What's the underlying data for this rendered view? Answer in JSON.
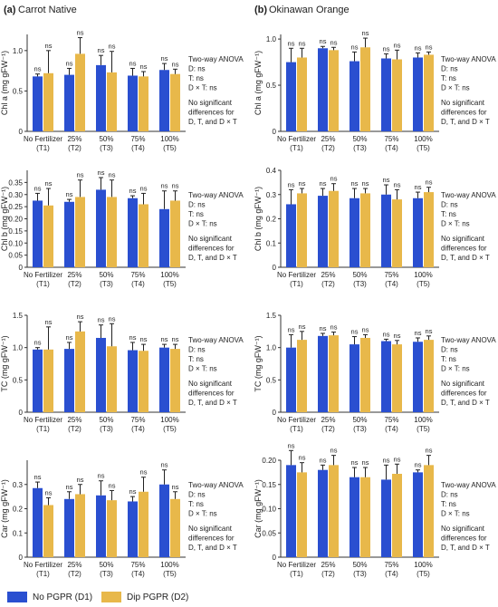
{
  "colors": {
    "D1": "#2a4fd0",
    "D2": "#e8b84a",
    "axis": "#333333",
    "text": "#222222"
  },
  "panels": [
    {
      "letter": "(a)",
      "title": "Carrot Native"
    },
    {
      "letter": "(b)",
      "title": "Okinawan Orange"
    }
  ],
  "legend": [
    {
      "key": "D1",
      "label": "No PGPR (D1)"
    },
    {
      "key": "D2",
      "label": "Dip PGPR (D2)"
    }
  ],
  "chart_data": [
    {
      "panel": "a",
      "type": "bar",
      "ylabel": "Chl a (mg gFW⁻¹)",
      "ylim": [
        0,
        1.2
      ],
      "yticks": [
        "0",
        "0.5",
        "1.0"
      ],
      "ytick_values": [
        0,
        0.5,
        1.0
      ],
      "categories": [
        [
          "No Fertilizer",
          "(T1)"
        ],
        [
          "25%",
          "(T2)"
        ],
        [
          "50%",
          "(T3)"
        ],
        [
          "75%",
          "(T4)"
        ],
        [
          "100%",
          "(T5)"
        ]
      ],
      "series": [
        {
          "name": "No PGPR (D1)",
          "values": [
            0.68,
            0.7,
            0.82,
            0.69,
            0.76
          ],
          "errors": [
            0.03,
            0.08,
            0.12,
            0.09,
            0.08
          ],
          "labels": [
            "ns",
            "ns",
            "ns",
            "ns",
            "ns"
          ]
        },
        {
          "name": "Dip PGPR (D2)",
          "values": [
            0.72,
            0.96,
            0.73,
            0.68,
            0.71
          ],
          "errors": [
            0.28,
            0.2,
            0.26,
            0.06,
            0.06
          ],
          "labels": [
            "ns",
            "ns",
            "ns",
            "ns",
            "ns"
          ]
        }
      ],
      "annotation": [
        "Two-way ANOVA",
        "D: ns",
        "T: ns",
        "D × T: ns",
        "",
        "No significant",
        "differences for",
        "D, T, and D × T"
      ]
    },
    {
      "panel": "a",
      "type": "bar",
      "ylabel": "Chl b (mg gFW⁻¹)",
      "ylim": [
        0,
        0.4
      ],
      "yticks": [
        "0",
        "0.05",
        "0.10",
        "0.15",
        "0.20",
        "0.25",
        "0.30",
        "0.35"
      ],
      "ytick_values": [
        0,
        0.05,
        0.1,
        0.15,
        0.2,
        0.25,
        0.3,
        0.35
      ],
      "categories": [
        [
          "No Fertilizer",
          "(T1)"
        ],
        [
          "25%",
          "(T2)"
        ],
        [
          "50%",
          "(T3)"
        ],
        [
          "75%",
          "(T4)"
        ],
        [
          "100%",
          "(T5)"
        ]
      ],
      "series": [
        {
          "name": "No PGPR (D1)",
          "values": [
            0.275,
            0.27,
            0.32,
            0.285,
            0.24
          ],
          "errors": [
            0.03,
            0.01,
            0.05,
            0.01,
            0.075
          ],
          "labels": [
            "ns",
            "ns",
            "ns",
            "ns",
            "ns"
          ]
        },
        {
          "name": "Dip PGPR (D2)",
          "values": [
            0.255,
            0.29,
            0.29,
            0.26,
            0.275
          ],
          "errors": [
            0.07,
            0.07,
            0.07,
            0.045,
            0.04
          ],
          "labels": [
            "ns",
            "ns",
            "ns",
            "ns",
            "ns"
          ]
        }
      ],
      "annotation": [
        "Two-way ANOVA",
        "D: ns",
        "T: ns",
        "D × T: ns",
        "",
        "No significant",
        "differences for",
        "D, T, and D × T"
      ]
    },
    {
      "panel": "a",
      "type": "bar",
      "ylabel": "TC (mg gFW⁻¹)",
      "ylim": [
        0,
        1.5
      ],
      "yticks": [
        "0",
        "0.5",
        "1.0",
        "1.5"
      ],
      "ytick_values": [
        0,
        0.5,
        1.0,
        1.5
      ],
      "categories": [
        [
          "No Fertilizer",
          "(T1)"
        ],
        [
          "25%",
          "(T2)"
        ],
        [
          "50%",
          "(T3)"
        ],
        [
          "75%",
          "(T4)"
        ],
        [
          "100%",
          "(T5)"
        ]
      ],
      "series": [
        {
          "name": "No PGPR (D1)",
          "values": [
            0.97,
            0.98,
            1.15,
            0.96,
            1.0
          ],
          "errors": [
            0.03,
            0.1,
            0.2,
            0.12,
            0.05
          ],
          "labels": [
            "ns",
            "ns",
            "ns",
            "ns",
            "ns"
          ]
        },
        {
          "name": "Dip PGPR (D2)",
          "values": [
            0.97,
            1.25,
            1.02,
            0.95,
            0.98
          ],
          "errors": [
            0.35,
            0.15,
            0.35,
            0.1,
            0.07
          ],
          "labels": [
            "ns",
            "ns",
            "ns",
            "ns",
            "ns"
          ]
        }
      ],
      "annotation": [
        "Two-way ANOVA",
        "D: ns",
        "T: ns",
        "D × T: ns",
        "",
        "No significant",
        "differences for",
        "D, T, and D × T"
      ]
    },
    {
      "panel": "a",
      "type": "bar",
      "ylabel": "Car (mg gFW⁻¹)",
      "ylim": [
        0,
        0.4
      ],
      "yticks": [
        "0",
        "0.1",
        "0.2",
        "0.3"
      ],
      "ytick_values": [
        0,
        0.1,
        0.2,
        0.3
      ],
      "categories": [
        [
          "No Fertilizer",
          "(T1)"
        ],
        [
          "25%",
          "(T2)"
        ],
        [
          "50%",
          "(T3)"
        ],
        [
          "75%",
          "(T4)"
        ],
        [
          "100%",
          "(T5)"
        ]
      ],
      "series": [
        {
          "name": "No PGPR (D1)",
          "values": [
            0.285,
            0.24,
            0.255,
            0.23,
            0.3
          ],
          "errors": [
            0.025,
            0.03,
            0.06,
            0.02,
            0.06
          ],
          "labels": [
            "ns",
            "ns",
            "ns",
            "ns",
            "ns"
          ]
        },
        {
          "name": "Dip PGPR (D2)",
          "values": [
            0.215,
            0.26,
            0.235,
            0.27,
            0.24
          ],
          "errors": [
            0.03,
            0.04,
            0.04,
            0.06,
            0.03
          ],
          "labels": [
            "ns",
            "ns",
            "ns",
            "ns",
            "ns"
          ]
        }
      ],
      "annotation": [
        "Two-way ANOVA",
        "D: ns",
        "T: ns",
        "D × T: ns",
        "",
        "No significant",
        "differences for",
        "D, T, and D × T"
      ]
    },
    {
      "panel": "b",
      "type": "bar",
      "ylabel": "Chl a (mg gFW⁻¹)",
      "ylim": [
        0,
        1.05
      ],
      "yticks": [
        "0",
        "0.5",
        "1.0"
      ],
      "ytick_values": [
        0,
        0.5,
        1.0
      ],
      "categories": [
        [
          "No Fertilizer",
          "(T1)"
        ],
        [
          "25%",
          "(T2)"
        ],
        [
          "50%",
          "(T3)"
        ],
        [
          "75%",
          "(T4)"
        ],
        [
          "100%",
          "(T5)"
        ]
      ],
      "series": [
        {
          "name": "No PGPR (D1)",
          "values": [
            0.75,
            0.9,
            0.76,
            0.79,
            0.8
          ],
          "errors": [
            0.15,
            0.02,
            0.1,
            0.05,
            0.05
          ],
          "labels": [
            "ns",
            "ns",
            "ns",
            "ns",
            "ns"
          ]
        },
        {
          "name": "Dip PGPR (D2)",
          "values": [
            0.8,
            0.88,
            0.91,
            0.78,
            0.83
          ],
          "errors": [
            0.1,
            0.03,
            0.1,
            0.1,
            0.03
          ],
          "labels": [
            "ns",
            "ns",
            "ns",
            "ns",
            "ns"
          ]
        }
      ],
      "annotation": [
        "Two-way ANOVA",
        "D: ns",
        "T: ns",
        "D × T: ns",
        "",
        "No significant",
        "differences for",
        "D, T, and D × T"
      ]
    },
    {
      "panel": "b",
      "type": "bar",
      "ylabel": "Chl b (mg gFW⁻¹)",
      "ylim": [
        0,
        0.4
      ],
      "yticks": [
        "0",
        "0.1",
        "0.2",
        "0.3",
        "0.4"
      ],
      "ytick_values": [
        0,
        0.1,
        0.2,
        0.3,
        0.4
      ],
      "categories": [
        [
          "No Fertilizer",
          "(T1)"
        ],
        [
          "25%",
          "(T2)"
        ],
        [
          "50%",
          "(T3)"
        ],
        [
          "75%",
          "(T4)"
        ],
        [
          "100%",
          "(T5)"
        ]
      ],
      "series": [
        {
          "name": "No PGPR (D1)",
          "values": [
            0.26,
            0.295,
            0.285,
            0.3,
            0.285
          ],
          "errors": [
            0.06,
            0.03,
            0.04,
            0.04,
            0.025
          ],
          "labels": [
            "ns",
            "ns",
            "ns",
            "ns",
            "ns"
          ]
        },
        {
          "name": "Dip PGPR (D2)",
          "values": [
            0.305,
            0.315,
            0.305,
            0.28,
            0.31
          ],
          "errors": [
            0.02,
            0.03,
            0.02,
            0.04,
            0.02
          ],
          "labels": [
            "ns",
            "ns",
            "ns",
            "ns",
            "ns"
          ]
        }
      ],
      "annotation": [
        "Two-way ANOVA",
        "D: ns",
        "T: ns",
        "D × T: ns",
        "",
        "No significant",
        "differences for",
        "D, T, and D × T"
      ]
    },
    {
      "panel": "b",
      "type": "bar",
      "ylabel": "TC (mg gFW⁻¹)",
      "ylim": [
        0,
        1.5
      ],
      "yticks": [
        "0",
        "0.5",
        "1.0",
        "1.5"
      ],
      "ytick_values": [
        0,
        0.5,
        1.0,
        1.5
      ],
      "categories": [
        [
          "No Fertilizer",
          "(T1)"
        ],
        [
          "25%",
          "(T2)"
        ],
        [
          "50%",
          "(T3)"
        ],
        [
          "75%",
          "(T4)"
        ],
        [
          "100%",
          "(T5)"
        ]
      ],
      "series": [
        {
          "name": "No PGPR (D1)",
          "values": [
            1.0,
            1.18,
            1.05,
            1.1,
            1.09
          ],
          "errors": [
            0.2,
            0.04,
            0.12,
            0.03,
            0.06
          ],
          "labels": [
            "ns",
            "ns",
            "ns",
            "ns",
            "ns"
          ]
        },
        {
          "name": "Dip PGPR (D2)",
          "values": [
            1.12,
            1.19,
            1.15,
            1.05,
            1.12
          ],
          "errors": [
            0.13,
            0.05,
            0.05,
            0.06,
            0.06
          ],
          "labels": [
            "ns",
            "ns",
            "ns",
            "ns",
            "ns"
          ]
        }
      ],
      "annotation": [
        "Two-way ANOVA",
        "D: ns",
        "T: ns",
        "D × T: ns",
        "",
        "No significant",
        "differences for",
        "D, T, and D × T"
      ]
    },
    {
      "panel": "b",
      "type": "bar",
      "ylabel": "Car (mg gFW⁻¹)",
      "ylim": [
        0,
        0.2
      ],
      "yticks": [
        "0",
        "0.05",
        "0.10",
        "0.15",
        "0.20"
      ],
      "ytick_values": [
        0,
        0.05,
        0.1,
        0.15,
        0.2
      ],
      "categories": [
        [
          "No Fertilizer",
          "(T1)"
        ],
        [
          "25%",
          "(T2)"
        ],
        [
          "50%",
          "(T3)"
        ],
        [
          "75%",
          "(T4)"
        ],
        [
          "100%",
          "(T5)"
        ]
      ],
      "series": [
        {
          "name": "No PGPR (D1)",
          "values": [
            0.19,
            0.18,
            0.165,
            0.16,
            0.175
          ],
          "errors": [
            0.03,
            0.01,
            0.02,
            0.03,
            0.005
          ],
          "labels": [
            "ns",
            "ns",
            "ns",
            "ns",
            "ns"
          ]
        },
        {
          "name": "Dip PGPR (D2)",
          "values": [
            0.175,
            0.19,
            0.165,
            0.172,
            0.19
          ],
          "errors": [
            0.02,
            0.02,
            0.02,
            0.02,
            0.02
          ],
          "labels": [
            "ns",
            "ns",
            "ns",
            "ns",
            "ns"
          ]
        }
      ],
      "annotation": [
        "Two-way ANOVA",
        "D: ns",
        "T: ns",
        "D × T: ns",
        "",
        "No significant",
        "differences for",
        "D, T, and D × T"
      ]
    }
  ]
}
